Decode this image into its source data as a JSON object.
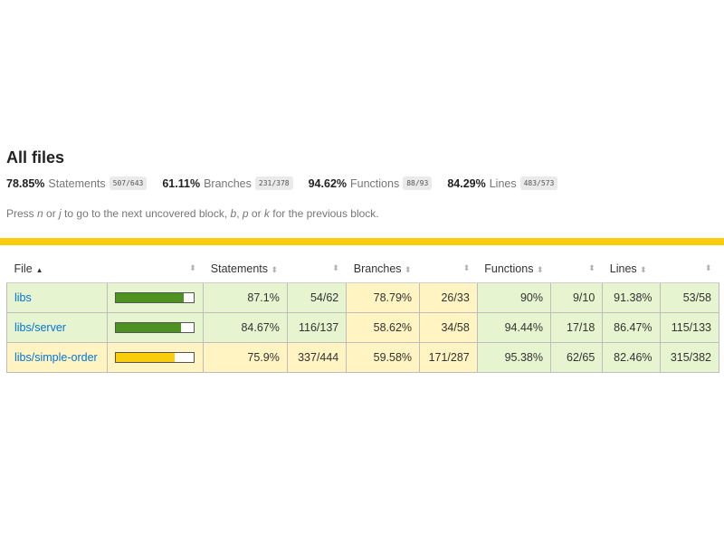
{
  "title": "All files",
  "summary": [
    {
      "pct": "78.85%",
      "label": "Statements",
      "fraction": "507/643"
    },
    {
      "pct": "61.11%",
      "label": "Branches",
      "fraction": "231/378"
    },
    {
      "pct": "94.62%",
      "label": "Functions",
      "fraction": "88/93"
    },
    {
      "pct": "84.29%",
      "label": "Lines",
      "fraction": "483/573"
    }
  ],
  "hint": {
    "press": "Press ",
    "k1": "n",
    "or1": " or ",
    "k2": "j",
    "mid": " to go to the next uncovered block, ",
    "k3": "b",
    "sep1": ", ",
    "k4": "p",
    "or2": " or ",
    "k5": "k",
    "end": " for the previous block."
  },
  "colors": {
    "high": "#e6f5d0",
    "medium": "#fff4c2",
    "bar_high": "#4d9221",
    "bar_medium": "#f9cd0b",
    "bar_empty": "#ffffff",
    "accent": "#f9cd0b",
    "link": "#0074d9"
  },
  "icons": {
    "sort_asc": "▲",
    "sort_both": "⬍"
  },
  "columns": [
    "File",
    "Statements",
    "Branches",
    "Functions",
    "Lines"
  ],
  "rows": [
    {
      "file": "libs",
      "coverage": 0.871,
      "bar_level": "high",
      "statements": {
        "pct": "87.1%",
        "frac": "54/62",
        "level": "high"
      },
      "branches": {
        "pct": "78.79%",
        "frac": "26/33",
        "level": "medium"
      },
      "functions": {
        "pct": "90%",
        "frac": "9/10",
        "level": "high"
      },
      "lines": {
        "pct": "91.38%",
        "frac": "53/58",
        "level": "high"
      }
    },
    {
      "file": "libs/server",
      "coverage": 0.8467,
      "bar_level": "high",
      "statements": {
        "pct": "84.67%",
        "frac": "116/137",
        "level": "high"
      },
      "branches": {
        "pct": "58.62%",
        "frac": "34/58",
        "level": "medium"
      },
      "functions": {
        "pct": "94.44%",
        "frac": "17/18",
        "level": "high"
      },
      "lines": {
        "pct": "86.47%",
        "frac": "115/133",
        "level": "high"
      }
    },
    {
      "file": "libs/simple-order",
      "coverage": 0.759,
      "bar_level": "medium",
      "statements": {
        "pct": "75.9%",
        "frac": "337/444",
        "level": "medium"
      },
      "branches": {
        "pct": "59.58%",
        "frac": "171/287",
        "level": "medium"
      },
      "functions": {
        "pct": "95.38%",
        "frac": "62/65",
        "level": "high"
      },
      "lines": {
        "pct": "82.46%",
        "frac": "315/382",
        "level": "high"
      }
    }
  ]
}
